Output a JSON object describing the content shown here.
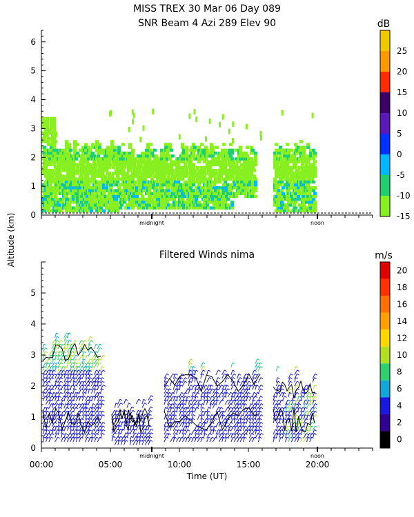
{
  "figure": {
    "title_line1": "MISS TREX    30 Mar 06 Day 089",
    "shared_ylabel": "Altitude (km)"
  },
  "chart_data": [
    {
      "type": "heatmap",
      "title": "SNR Beam 4 Azi 289 Elev 90",
      "ylim": [
        0,
        6.4
      ],
      "yticks": [
        "0",
        "1",
        "2",
        "3",
        "4",
        "5",
        "6"
      ],
      "xlim": [
        0,
        24
      ],
      "x_markers": [
        {
          "x": 8,
          "label": "midnight"
        },
        {
          "x": 20,
          "label": "noon"
        }
      ],
      "colorbar": {
        "unit": "dB",
        "ticks": [
          "25",
          "20",
          "15",
          "10",
          "5",
          "0",
          "-5",
          "-10",
          "-15"
        ],
        "colors": [
          "#f0c800",
          "#ff9900",
          "#ff2a00",
          "#3c0066",
          "#5a18b8",
          "#0030ff",
          "#00b8ff",
          "#20d070",
          "#88f020"
        ]
      },
      "echo_regions": [
        {
          "t0": 0.0,
          "t1": 1.0,
          "z0": 0.1,
          "z1": 3.4
        },
        {
          "t0": 1.0,
          "t1": 5.5,
          "z0": 0.1,
          "z1": 2.6
        },
        {
          "t0": 5.5,
          "t1": 13.8,
          "z0": 0.2,
          "z1": 2.5
        },
        {
          "t0": 13.8,
          "t1": 15.5,
          "z0": 0.6,
          "z1": 2.4
        },
        {
          "t0": 16.8,
          "t1": 19.8,
          "z0": 0.1,
          "z1": 2.6
        }
      ]
    },
    {
      "type": "vector-wind",
      "title": "Filtered Winds nima",
      "ylim": [
        0,
        6
      ],
      "yticks": [
        "0",
        "1",
        "2",
        "3",
        "4",
        "5"
      ],
      "xlim": [
        0,
        24
      ],
      "xticks": [
        "00:00",
        "05:00",
        "10:00",
        "15:00",
        "20:00"
      ],
      "xlabel": "Time (UT)",
      "x_markers": [
        {
          "x": 8,
          "label": "midnight"
        },
        {
          "x": 20,
          "label": "noon"
        }
      ],
      "colorbar": {
        "unit": "m/s",
        "ticks": [
          "20",
          "18",
          "16",
          "14",
          "12",
          "10",
          "8",
          "6",
          "4",
          "2",
          "0"
        ],
        "colors": [
          "#e00000",
          "#ff3000",
          "#ff7000",
          "#ffa000",
          "#ffd800",
          "#b0e020",
          "#30d070",
          "#10a8d8",
          "#1818e0",
          "#300090",
          "#000000"
        ]
      },
      "wind_regions": [
        {
          "t0": 0.1,
          "t1": 4.3,
          "z0": 0.2,
          "z1": 3.8
        },
        {
          "t0": 5.1,
          "t1": 7.8,
          "z0": 0.1,
          "z1": 1.7
        },
        {
          "t0": 8.9,
          "t1": 15.8,
          "z0": 0.2,
          "z1": 2.8
        },
        {
          "t0": 16.8,
          "t1": 19.8,
          "z0": 0.2,
          "z1": 2.6
        }
      ]
    }
  ]
}
